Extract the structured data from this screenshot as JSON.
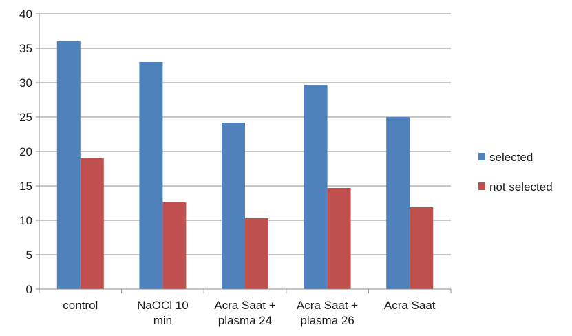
{
  "chart_data": {
    "type": "bar",
    "categories": [
      [
        "control"
      ],
      [
        "NaOCl 10",
        "min"
      ],
      [
        "Acra Saat +",
        "plasma 24"
      ],
      [
        "Acra Saat +",
        "plasma 26"
      ],
      [
        "Acra Saat"
      ]
    ],
    "series": [
      {
        "name": "selected",
        "color": "#4f81bd",
        "values": [
          36,
          33,
          24.2,
          29.7,
          25
        ]
      },
      {
        "name": "not selected",
        "color": "#c0504d",
        "values": [
          19,
          12.6,
          10.3,
          14.7,
          11.9
        ]
      }
    ],
    "ylim": [
      0,
      40
    ],
    "yticks": [
      0,
      5,
      10,
      15,
      20,
      25,
      30,
      35,
      40
    ],
    "grid": true,
    "legend": "right",
    "title": "",
    "xlabel": "",
    "ylabel": ""
  }
}
